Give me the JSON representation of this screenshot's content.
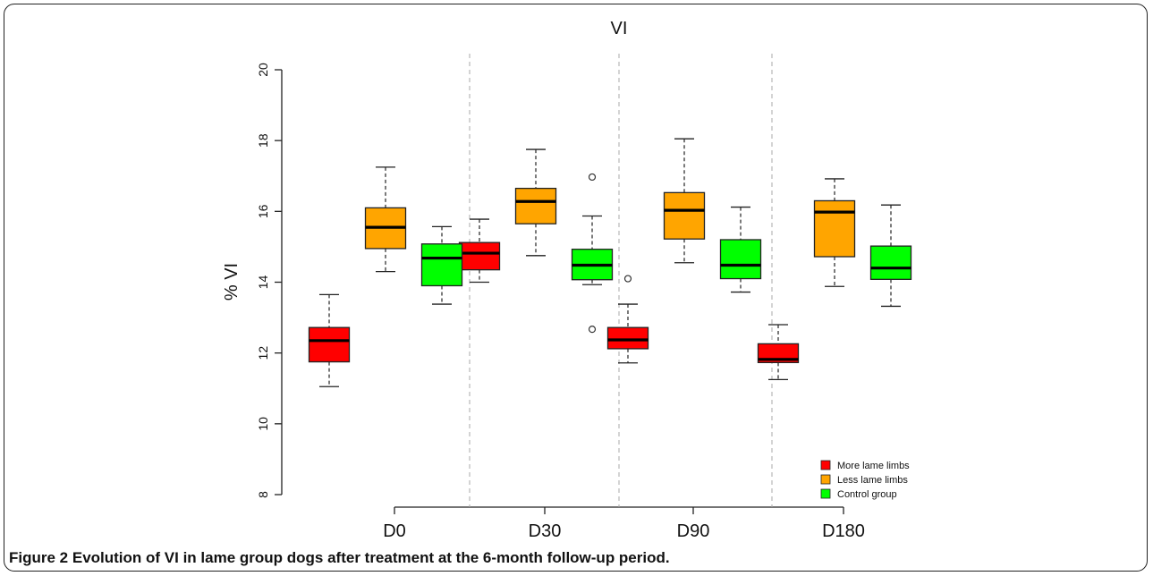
{
  "chart_data": {
    "type": "box",
    "title": "VI",
    "xlabel": "",
    "ylabel": "% VI",
    "ylim": [
      8,
      20
    ],
    "yticks": [
      "8",
      "10",
      "12",
      "14",
      "16",
      "18",
      "20"
    ],
    "categories": [
      "D0",
      "D30",
      "D90",
      "D180"
    ],
    "legend_position": "bottom-right",
    "series": [
      {
        "name": "More lame limbs",
        "color": "#ff0000",
        "boxes": [
          {
            "min": 11.05,
            "q1": 11.75,
            "median": 12.35,
            "q3": 12.72,
            "max": 13.65,
            "outliers": []
          },
          {
            "min": 14.0,
            "q1": 14.35,
            "median": 14.82,
            "q3": 15.12,
            "max": 15.78,
            "outliers": []
          },
          {
            "min": 11.72,
            "q1": 12.12,
            "median": 12.37,
            "q3": 12.72,
            "max": 13.38,
            "outliers": [
              14.1
            ]
          },
          {
            "min": 11.25,
            "q1": 11.73,
            "median": 11.82,
            "q3": 12.26,
            "max": 12.8,
            "outliers": []
          }
        ]
      },
      {
        "name": "Less lame limbs",
        "color": "#ffa500",
        "boxes": [
          {
            "min": 14.3,
            "q1": 14.95,
            "median": 15.55,
            "q3": 16.1,
            "max": 17.25,
            "outliers": []
          },
          {
            "min": 14.75,
            "q1": 15.65,
            "median": 16.28,
            "q3": 16.65,
            "max": 17.75,
            "outliers": []
          },
          {
            "min": 14.55,
            "q1": 15.22,
            "median": 16.03,
            "q3": 16.53,
            "max": 18.05,
            "outliers": []
          },
          {
            "min": 13.88,
            "q1": 14.72,
            "median": 15.98,
            "q3": 16.3,
            "max": 16.92,
            "outliers": []
          }
        ]
      },
      {
        "name": "Control group",
        "color": "#00ff00",
        "boxes": [
          {
            "min": 13.38,
            "q1": 13.9,
            "median": 14.68,
            "q3": 15.08,
            "max": 15.57,
            "outliers": []
          },
          {
            "min": 13.93,
            "q1": 14.07,
            "median": 14.48,
            "q3": 14.93,
            "max": 15.87,
            "outliers": [
              16.97,
              12.67
            ]
          },
          {
            "min": 13.72,
            "q1": 14.1,
            "median": 14.48,
            "q3": 15.2,
            "max": 16.12,
            "outliers": []
          },
          {
            "min": 13.32,
            "q1": 14.08,
            "median": 14.4,
            "q3": 15.02,
            "max": 16.18,
            "outliers": []
          }
        ]
      }
    ]
  },
  "caption": {
    "label": "Figure 2",
    "text": "Evolution of VI in lame group dogs after treatment at the 6-month follow-up period."
  }
}
